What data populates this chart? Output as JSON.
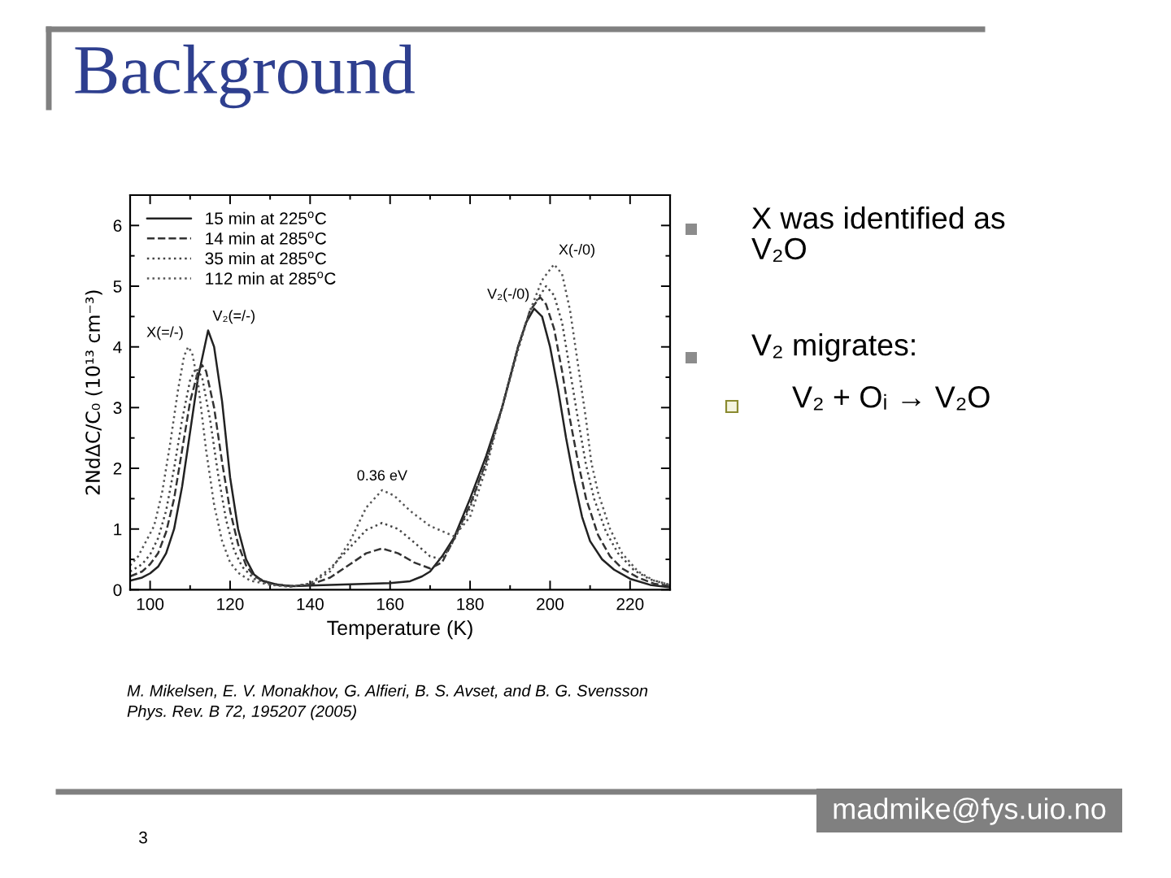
{
  "chart_data": {
    "type": "line",
    "title": "Background",
    "xlabel": "Temperature (K)",
    "ylabel": "2NdΔC/C₀ (10¹³ cm⁻³)",
    "xlim": [
      95,
      230
    ],
    "xticks": [
      100,
      {
        "value": 110,
        "label": null
      },
      120,
      {
        "value": 130,
        "label": null
      },
      140,
      {
        "value": 150,
        "label": null
      },
      160,
      {
        "value": 170,
        "label": null
      },
      180,
      {
        "value": 190,
        "label": null
      },
      200,
      {
        "value": 210,
        "label": null
      },
      220
    ],
    "ylim": [
      0,
      6.5
    ],
    "yticks": [
      0,
      {
        "value": 0.5,
        "label": null
      },
      1,
      {
        "value": 1.5,
        "label": null
      },
      2,
      {
        "value": 2.5,
        "label": null
      },
      3,
      {
        "value": 3.5,
        "label": null
      },
      4,
      {
        "value": 4.5,
        "label": null
      },
      5,
      {
        "value": 5.5,
        "label": null
      },
      6
    ],
    "legend": "top left",
    "series": [
      {
        "name": "15 min at 225$^{o}$C",
        "color": "#222222",
        "line_style": "solid",
        "x": [
          95,
          98,
          100,
          102,
          104,
          106,
          108,
          110,
          112,
          114.5,
          116,
          118,
          120,
          122,
          124,
          126,
          128,
          132,
          136,
          140,
          145,
          150,
          155,
          160,
          165,
          168,
          170,
          173,
          176,
          180,
          184,
          188,
          192,
          194,
          196,
          198,
          200,
          202,
          204,
          206,
          208,
          210,
          213,
          216,
          220,
          225,
          230
        ],
        "values": [
          0.15,
          0.2,
          0.27,
          0.38,
          0.6,
          1.0,
          1.7,
          2.6,
          3.5,
          4.27,
          4.0,
          3.1,
          1.85,
          1.0,
          0.5,
          0.25,
          0.15,
          0.08,
          0.06,
          0.07,
          0.08,
          0.09,
          0.1,
          0.11,
          0.14,
          0.22,
          0.3,
          0.55,
          0.86,
          1.5,
          2.2,
          3.0,
          4.0,
          4.4,
          4.63,
          4.5,
          4.0,
          3.3,
          2.5,
          1.8,
          1.2,
          0.8,
          0.5,
          0.33,
          0.18,
          0.08,
          0.04
        ]
      },
      {
        "name": "14 min at 285$^{o}$C",
        "color": "#333333",
        "line_style": "dashed",
        "x": [
          95,
          98,
          100,
          102,
          104,
          106,
          108,
          110,
          112,
          113,
          114,
          116,
          118,
          120,
          122,
          124,
          126,
          130,
          135,
          140,
          145,
          150,
          154,
          158,
          162,
          166,
          170,
          173,
          176,
          180,
          184,
          188,
          192,
          195,
          197.5,
          199,
          201,
          203,
          205,
          207,
          209,
          212,
          215,
          218,
          222,
          226,
          230
        ],
        "values": [
          0.22,
          0.3,
          0.42,
          0.6,
          0.95,
          1.5,
          2.3,
          3.1,
          3.6,
          3.7,
          3.6,
          3.0,
          2.1,
          1.3,
          0.75,
          0.4,
          0.22,
          0.1,
          0.06,
          0.08,
          0.2,
          0.42,
          0.6,
          0.68,
          0.6,
          0.45,
          0.35,
          0.45,
          0.84,
          1.4,
          2.1,
          3.0,
          4.0,
          4.6,
          4.82,
          4.7,
          4.3,
          3.6,
          2.8,
          2.1,
          1.5,
          0.9,
          0.55,
          0.35,
          0.2,
          0.1,
          0.06
        ]
      },
      {
        "name": "35 min at 285$^{o}$C",
        "color": "#444444",
        "line_style": "dotted",
        "x": [
          95,
          98,
          100,
          102,
          104,
          106,
          108,
          110,
          111.5,
          113,
          115,
          117,
          119,
          121,
          123,
          126,
          130,
          135,
          140,
          145,
          150,
          154,
          158,
          162,
          166,
          170,
          173,
          176,
          180,
          184,
          188,
          192,
          195,
          199,
          201,
          203,
          205,
          207,
          209,
          211,
          214,
          217,
          221,
          225,
          230
        ],
        "values": [
          0.3,
          0.42,
          0.58,
          0.85,
          1.3,
          2.0,
          2.8,
          3.45,
          3.65,
          3.5,
          2.8,
          1.9,
          1.15,
          0.65,
          0.38,
          0.18,
          0.09,
          0.05,
          0.1,
          0.35,
          0.7,
          0.98,
          1.1,
          1.0,
          0.78,
          0.55,
          0.5,
          0.82,
          1.35,
          2.1,
          3.0,
          3.95,
          4.6,
          5.0,
          4.85,
          4.4,
          3.6,
          2.8,
          2.05,
          1.5,
          0.95,
          0.6,
          0.32,
          0.17,
          0.08
        ]
      },
      {
        "name": "112 min at 285$^{o}$C",
        "color": "#555555",
        "line_style": "dotted",
        "x": [
          95,
          97,
          99,
          101,
          103,
          105,
          107,
          108.5,
          109.5,
          110.5,
          112,
          114,
          116,
          118,
          120,
          122,
          125,
          130,
          135,
          140,
          145,
          150,
          154,
          158,
          161,
          165,
          170,
          176,
          180,
          184,
          188,
          192,
          195,
          198,
          201,
          203,
          205,
          207,
          209,
          210.3,
          212,
          215,
          218,
          222,
          226,
          230
        ],
        "values": [
          0.4,
          0.55,
          0.8,
          1.05,
          1.6,
          2.4,
          3.3,
          3.85,
          4.0,
          3.9,
          3.4,
          2.3,
          1.4,
          0.8,
          0.45,
          0.28,
          0.15,
          0.08,
          0.05,
          0.1,
          0.3,
          0.8,
          1.35,
          1.64,
          1.55,
          1.3,
          1.05,
          0.88,
          1.2,
          2.0,
          3.0,
          4.0,
          4.6,
          5.1,
          5.36,
          5.2,
          4.6,
          3.7,
          2.8,
          2.1,
          1.6,
          1.0,
          0.6,
          0.3,
          0.15,
          0.08
        ]
      }
    ],
    "annotations": [
      {
        "text": "X(=/-)",
        "x": 109.5,
        "y": 4.0
      },
      {
        "text": "V₂(=/-)",
        "x": 114.5,
        "y": 4.27
      },
      {
        "text": "0.36 eV",
        "x": 158,
        "y": 1.64
      },
      {
        "text": "V₂(-/0)",
        "x": 196,
        "y": 4.63
      },
      {
        "text": "X(-/0)",
        "x": 201,
        "y": 5.36
      },
      "X was identified as\nV₂O",
      "V₂ migrates:",
      "V₂ + Oᵢ → V₂O",
      "M. Mikelsen, E. V. Monakhov, G. Alfieri, B. S. Avset, and B. G. Svensson\nPhys. Rev. B 72, 195207 (2005)",
      "madmike@fys.uio.no",
      "3"
    ]
  }
}
